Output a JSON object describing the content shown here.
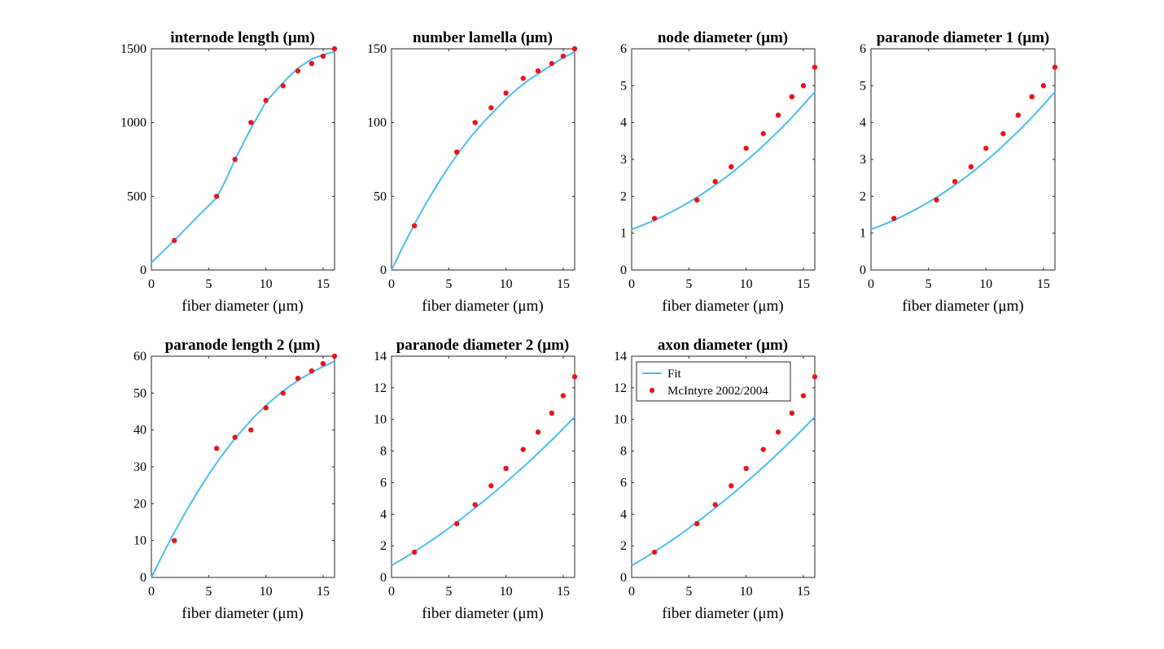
{
  "legend": {
    "fit_label": "Fit",
    "data_label": "McIntyre 2002/2004"
  },
  "colors": {
    "fit": "#4dbeee",
    "data": "#e8141a",
    "axis": "#262626"
  },
  "chart_data": [
    {
      "type": "line",
      "title": "internode length (μm)",
      "xlabel": "fiber diameter (μm)",
      "ylabel": "",
      "xlim": [
        0,
        16
      ],
      "ylim": [
        0,
        1500
      ],
      "xticks": [
        0,
        5,
        10,
        15
      ],
      "yticks": [
        0,
        500,
        1000,
        1500
      ],
      "series": [
        {
          "name": "Fit",
          "kind": "line",
          "x": [
            0,
            2,
            4,
            5.7,
            6.5,
            7.3,
            8.7,
            10,
            11.5,
            12.8,
            14,
            15,
            16
          ],
          "y": [
            50,
            200,
            360,
            490,
            610,
            750,
            960,
            1140,
            1270,
            1370,
            1430,
            1460,
            1480
          ]
        },
        {
          "name": "McIntyre 2002/2004",
          "kind": "scatter",
          "x": [
            2,
            5.7,
            7.3,
            8.7,
            10,
            11.5,
            12.8,
            14,
            15,
            16
          ],
          "y": [
            200,
            500,
            750,
            1000,
            1150,
            1250,
            1350,
            1400,
            1450,
            1500
          ]
        }
      ]
    },
    {
      "type": "line",
      "title": "number lamella (μm)",
      "xlabel": "fiber diameter (μm)",
      "ylabel": "",
      "xlim": [
        0,
        16
      ],
      "ylim": [
        0,
        150
      ],
      "xticks": [
        0,
        5,
        10,
        15
      ],
      "yticks": [
        0,
        50,
        100,
        150
      ],
      "series": [
        {
          "name": "Fit",
          "kind": "line",
          "x": [
            0,
            1,
            2,
            3,
            4,
            5,
            6,
            7,
            8,
            9,
            10,
            11,
            12,
            13,
            14,
            15,
            16
          ],
          "y": [
            0,
            16,
            31,
            45,
            58,
            70,
            81,
            91,
            100,
            108,
            116,
            123,
            129,
            134,
            139,
            144,
            148
          ]
        },
        {
          "name": "McIntyre 2002/2004",
          "kind": "scatter",
          "x": [
            2,
            5.7,
            7.3,
            8.7,
            10,
            11.5,
            12.8,
            14,
            15,
            16
          ],
          "y": [
            30,
            80,
            100,
            110,
            120,
            130,
            135,
            140,
            145,
            150
          ]
        }
      ]
    },
    {
      "type": "line",
      "title": "node diameter (μm)",
      "xlabel": "fiber diameter (μm)",
      "ylabel": "",
      "xlim": [
        0,
        16
      ],
      "ylim": [
        0,
        6
      ],
      "xticks": [
        0,
        5,
        10,
        15
      ],
      "yticks": [
        0,
        1,
        2,
        3,
        4,
        5,
        6
      ],
      "series": [
        {
          "name": "Fit",
          "kind": "line",
          "x": [
            0,
            1,
            2,
            3,
            4,
            5,
            6,
            7,
            8,
            9,
            10,
            11,
            12,
            13,
            14,
            15,
            16
          ],
          "y": [
            1.1,
            1.22,
            1.35,
            1.5,
            1.66,
            1.84,
            2.03,
            2.24,
            2.46,
            2.7,
            2.96,
            3.23,
            3.52,
            3.82,
            4.14,
            4.48,
            4.83
          ]
        },
        {
          "name": "McIntyre 2002/2004",
          "kind": "scatter",
          "x": [
            2,
            5.7,
            7.3,
            8.7,
            10,
            11.5,
            12.8,
            14,
            15,
            16
          ],
          "y": [
            1.4,
            1.9,
            2.4,
            2.8,
            3.3,
            3.7,
            4.2,
            4.7,
            5.0,
            5.5
          ]
        }
      ]
    },
    {
      "type": "line",
      "title": "paranode diameter 1 (μm)",
      "xlabel": "fiber diameter (μm)",
      "ylabel": "",
      "xlim": [
        0,
        16
      ],
      "ylim": [
        0,
        6
      ],
      "xticks": [
        0,
        5,
        10,
        15
      ],
      "yticks": [
        0,
        1,
        2,
        3,
        4,
        5,
        6
      ],
      "series": [
        {
          "name": "Fit",
          "kind": "line",
          "x": [
            0,
            1,
            2,
            3,
            4,
            5,
            6,
            7,
            8,
            9,
            10,
            11,
            12,
            13,
            14,
            15,
            16
          ],
          "y": [
            1.1,
            1.22,
            1.35,
            1.5,
            1.66,
            1.84,
            2.03,
            2.24,
            2.46,
            2.7,
            2.96,
            3.23,
            3.52,
            3.82,
            4.14,
            4.48,
            4.83
          ]
        },
        {
          "name": "McIntyre 2002/2004",
          "kind": "scatter",
          "x": [
            2,
            5.7,
            7.3,
            8.7,
            10,
            11.5,
            12.8,
            14,
            15,
            16
          ],
          "y": [
            1.4,
            1.9,
            2.4,
            2.8,
            3.3,
            3.7,
            4.2,
            4.7,
            5.0,
            5.5
          ]
        }
      ]
    },
    {
      "type": "line",
      "title": "paranode length 2 (μm)",
      "xlabel": "fiber diameter (μm)",
      "ylabel": "",
      "xlim": [
        0,
        16
      ],
      "ylim": [
        0,
        60
      ],
      "xticks": [
        0,
        5,
        10,
        15
      ],
      "yticks": [
        0,
        10,
        20,
        30,
        40,
        50,
        60
      ],
      "series": [
        {
          "name": "Fit",
          "kind": "line",
          "x": [
            0,
            1,
            2,
            3,
            4,
            5,
            6,
            7,
            8,
            9,
            10,
            11,
            12,
            13,
            14,
            15,
            16
          ],
          "y": [
            0,
            6.3,
            12.2,
            17.8,
            23,
            27.9,
            32.4,
            36.5,
            40.2,
            43.6,
            46.6,
            49.3,
            51.7,
            53.8,
            55.6,
            57.2,
            58.6
          ]
        },
        {
          "name": "McIntyre 2002/2004",
          "kind": "scatter",
          "x": [
            2,
            5.7,
            7.3,
            8.7,
            10,
            11.5,
            12.8,
            14,
            15,
            16
          ],
          "y": [
            10,
            35,
            38,
            40,
            46,
            50,
            54,
            56,
            58,
            60
          ]
        }
      ]
    },
    {
      "type": "line",
      "title": "paranode diameter 2 (μm)",
      "xlabel": "fiber diameter (μm)",
      "ylabel": "",
      "xlim": [
        0,
        16
      ],
      "ylim": [
        0,
        14
      ],
      "xticks": [
        0,
        5,
        10,
        15
      ],
      "yticks": [
        0,
        2,
        4,
        6,
        8,
        10,
        12,
        14
      ],
      "series": [
        {
          "name": "Fit",
          "kind": "line",
          "x": [
            0,
            1,
            2,
            3,
            4,
            5,
            6,
            7,
            8,
            9,
            10,
            11,
            12,
            13,
            14,
            15,
            16
          ],
          "y": [
            0.75,
            1.18,
            1.63,
            2.1,
            2.6,
            3.12,
            3.66,
            4.22,
            4.8,
            5.4,
            6.02,
            6.66,
            7.32,
            8.0,
            8.7,
            9.42,
            10.16
          ]
        },
        {
          "name": "McIntyre 2002/2004",
          "kind": "scatter",
          "x": [
            2,
            5.7,
            7.3,
            8.7,
            10,
            11.5,
            12.8,
            14,
            15,
            16
          ],
          "y": [
            1.6,
            3.4,
            4.6,
            5.8,
            6.9,
            8.1,
            9.2,
            10.4,
            11.5,
            12.7
          ]
        }
      ]
    },
    {
      "type": "line",
      "title": "axon diameter (μm)",
      "xlabel": "fiber diameter (μm)",
      "ylabel": "",
      "xlim": [
        0,
        16
      ],
      "ylim": [
        0,
        14
      ],
      "xticks": [
        0,
        5,
        10,
        15
      ],
      "yticks": [
        0,
        2,
        4,
        6,
        8,
        10,
        12,
        14
      ],
      "legend": "top-left",
      "series": [
        {
          "name": "Fit",
          "kind": "line",
          "x": [
            0,
            1,
            2,
            3,
            4,
            5,
            6,
            7,
            8,
            9,
            10,
            11,
            12,
            13,
            14,
            15,
            16
          ],
          "y": [
            0.75,
            1.18,
            1.63,
            2.1,
            2.6,
            3.12,
            3.66,
            4.22,
            4.8,
            5.4,
            6.02,
            6.66,
            7.32,
            8.0,
            8.7,
            9.42,
            10.16
          ]
        },
        {
          "name": "McIntyre 2002/2004",
          "kind": "scatter",
          "x": [
            2,
            5.7,
            7.3,
            8.7,
            10,
            11.5,
            12.8,
            14,
            15,
            16
          ],
          "y": [
            1.6,
            3.4,
            4.6,
            5.8,
            6.9,
            8.1,
            9.2,
            10.4,
            11.5,
            12.7
          ]
        }
      ]
    }
  ]
}
